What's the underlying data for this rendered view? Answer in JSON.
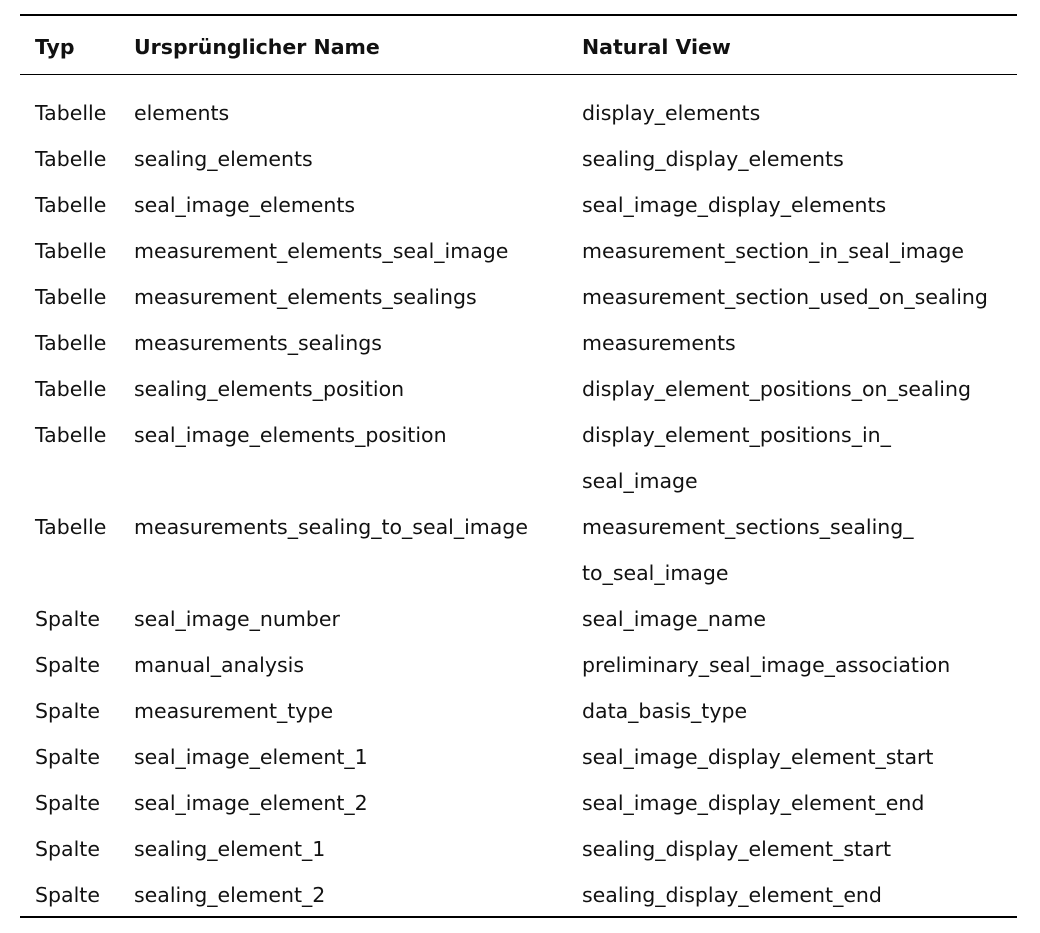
{
  "table": {
    "headers": [
      "Typ",
      "Ursprünglicher Name",
      "Natural View"
    ],
    "rows": [
      {
        "typ": "Tabelle",
        "original": "elements",
        "natural": "display_elements"
      },
      {
        "typ": "Tabelle",
        "original": "sealing_elements",
        "natural": "sealing_display_elements"
      },
      {
        "typ": "Tabelle",
        "original": "seal_image_elements",
        "natural": "seal_image_display_elements"
      },
      {
        "typ": "Tabelle",
        "original": "measurement_elements_seal_image",
        "natural": "measurement_section_in_seal_image"
      },
      {
        "typ": "Tabelle",
        "original": "measurement_elements_sealings",
        "natural": "measurement_section_used_on_sealing"
      },
      {
        "typ": "Tabelle",
        "original": "measurements_sealings",
        "natural": "measurements"
      },
      {
        "typ": "Tabelle",
        "original": "sealing_elements_position",
        "natural": "display_element_positions_on_sealing"
      },
      {
        "typ": "Tabelle",
        "original": "seal_image_elements_position",
        "natural": [
          "display_element_positions_in_",
          "seal_image"
        ]
      },
      {
        "typ": "Tabelle",
        "original": "measurements_sealing_to_seal_image",
        "natural": [
          "measurement_sections_sealing_",
          "to_seal_image"
        ]
      },
      {
        "typ": "Spalte",
        "original": "seal_image_number",
        "natural": "seal_image_name"
      },
      {
        "typ": "Spalte",
        "original": "manual_analysis",
        "natural": "preliminary_seal_image_association"
      },
      {
        "typ": "Spalte",
        "original": "measurement_type",
        "natural": "data_basis_type"
      },
      {
        "typ": "Spalte",
        "original": "seal_image_element_1",
        "natural": "seal_image_display_element_start"
      },
      {
        "typ": "Spalte",
        "original": "seal_image_element_2",
        "natural": "seal_image_display_element_end"
      },
      {
        "typ": "Spalte",
        "original": "sealing_element_1",
        "natural": "sealing_display_element_start"
      },
      {
        "typ": "Spalte",
        "original": "sealing_element_2",
        "natural": "sealing_display_element_end"
      }
    ]
  }
}
